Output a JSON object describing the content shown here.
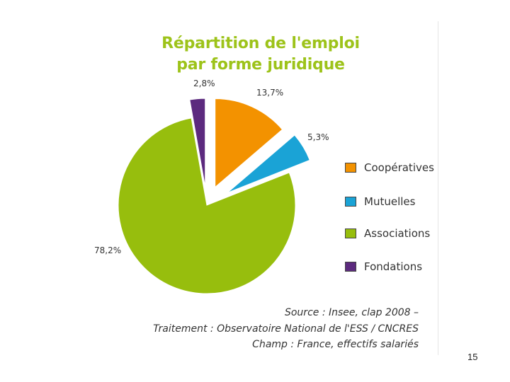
{
  "title": {
    "line1": "Répartition de l'emploi",
    "line2": "par forme juridique"
  },
  "chart_data": {
    "type": "pie",
    "title": "Répartition de l'emploi par forme juridique",
    "series": [
      {
        "name": "Coopératives",
        "value": 13.7,
        "label": "13,7%",
        "color": "#f39200"
      },
      {
        "name": "Mutuelles",
        "value": 5.3,
        "label": "5,3%",
        "color": "#1aa3d6"
      },
      {
        "name": "Associations",
        "value": 78.2,
        "label": "78,2%",
        "color": "#97be0d"
      },
      {
        "name": "Fondations",
        "value": 2.8,
        "label": "2,8%",
        "color": "#5c2a7e"
      }
    ],
    "legend_placement": "right",
    "exploded": true
  },
  "source": {
    "line1": "Source : Insee, clap 2008 –",
    "line2": "Traitement : Observatoire National de l'ESS / CNCRES",
    "line3": "Champ : France, effectifs salariés"
  },
  "page_number": "15"
}
